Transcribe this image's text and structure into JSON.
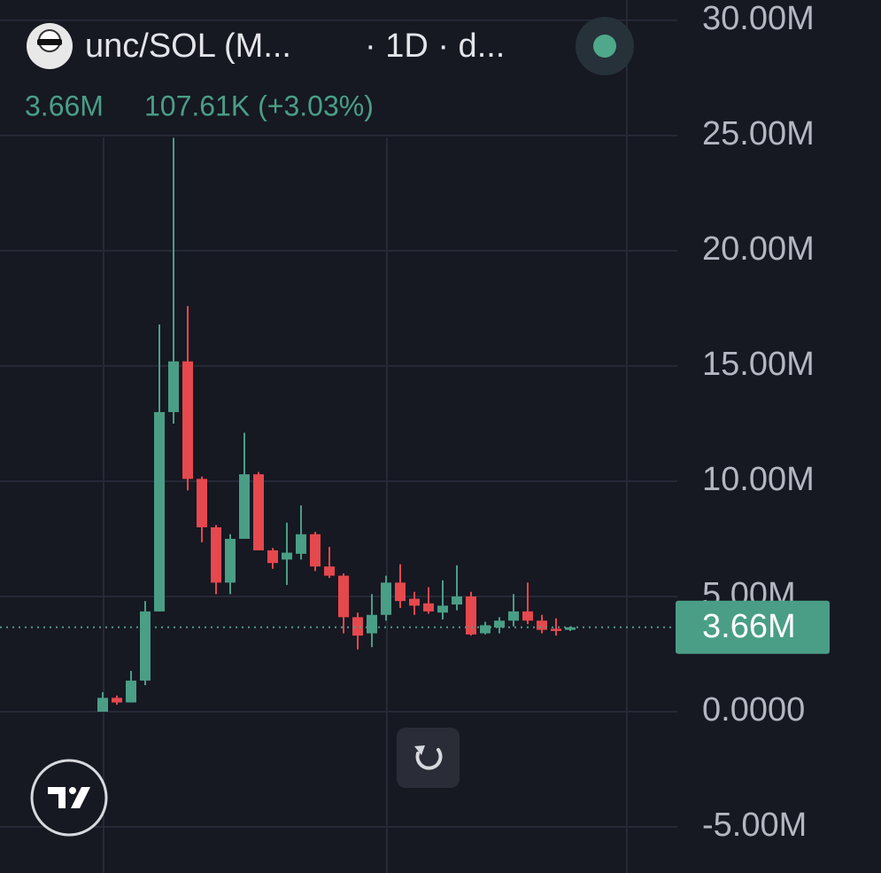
{
  "chart_data": {
    "type": "candlestick",
    "header": {
      "symbol": "unc/SOL (M...",
      "interval": "· 1D · d...",
      "price": "3.66M",
      "change": "107.61K (+3.03%)"
    },
    "open": [
      0.0,
      0.6,
      0.4,
      1.35,
      4.35,
      13.0,
      15.2,
      10.1,
      8.0,
      5.6,
      7.5,
      10.3,
      7.0,
      6.6,
      6.85,
      7.7,
      6.3,
      5.9,
      4.1,
      3.4,
      4.2,
      5.6,
      4.9,
      4.7,
      4.3,
      4.65,
      5.0,
      3.4,
      3.65,
      3.95,
      4.35,
      3.95,
      3.6,
      3.55
    ],
    "high": [
      0.85,
      0.7,
      1.77,
      4.8,
      16.8,
      24.9,
      17.6,
      10.2,
      8.1,
      7.7,
      12.1,
      10.4,
      7.1,
      8.2,
      8.95,
      7.8,
      7.15,
      6.0,
      4.3,
      5.1,
      5.9,
      6.4,
      5.2,
      5.4,
      5.7,
      6.35,
      5.2,
      3.9,
      4.1,
      5.1,
      5.6,
      4.2,
      4.05,
      3.7
    ],
    "low": [
      0.0,
      0.3,
      0.4,
      1.15,
      4.35,
      12.5,
      9.6,
      7.35,
      5.1,
      5.1,
      7.5,
      7.0,
      6.2,
      5.5,
      6.6,
      6.1,
      5.8,
      3.4,
      2.7,
      2.8,
      3.95,
      4.5,
      4.2,
      4.25,
      4.0,
      4.4,
      3.3,
      3.35,
      3.4,
      3.7,
      3.8,
      3.4,
      3.3,
      3.5
    ],
    "close": [
      0.6,
      0.4,
      1.35,
      4.35,
      13.0,
      15.2,
      10.1,
      8.0,
      5.6,
      7.5,
      10.3,
      7.0,
      6.45,
      6.9,
      7.7,
      6.3,
      5.9,
      4.1,
      3.3,
      4.2,
      5.6,
      4.8,
      4.6,
      4.35,
      4.6,
      5.0,
      3.35,
      3.75,
      3.95,
      4.35,
      3.95,
      3.55,
      3.5,
      3.66
    ],
    "up_color": "#4a9e86",
    "down_color": "#e5484d",
    "ylim": [
      -7,
      30.88
    ],
    "yticks": [
      {
        "value": 30,
        "label": "30.00M"
      },
      {
        "value": 25,
        "label": "25.00M"
      },
      {
        "value": 20,
        "label": "20.00M"
      },
      {
        "value": 15,
        "label": "15.00M"
      },
      {
        "value": 10,
        "label": "10.00M"
      },
      {
        "value": 5,
        "label": "5.00M"
      },
      {
        "value": 0,
        "label": "0.0000"
      },
      {
        "value": -5,
        "label": "-5.00M"
      }
    ],
    "last_price": {
      "value": 3.66,
      "label": "3.66M"
    },
    "grid": true
  }
}
